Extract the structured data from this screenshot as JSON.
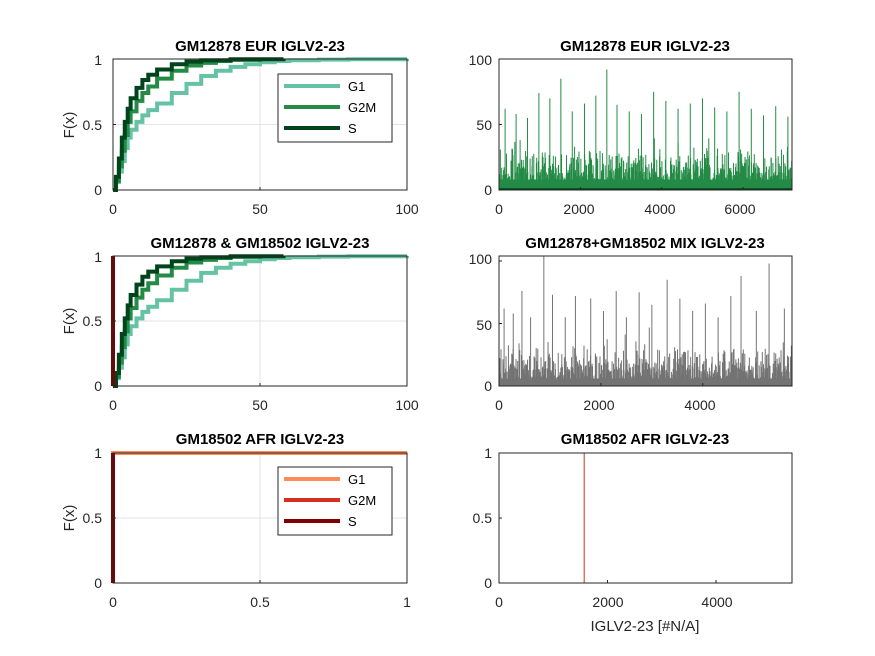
{
  "chart_data": [
    {
      "type": "line",
      "title": "GM12878 EUR IGLV2-23",
      "xlabel": "",
      "ylabel": "F(x)",
      "xlim": [
        0,
        100
      ],
      "ylim": [
        0,
        1
      ],
      "xticks": [
        "0",
        "50",
        "100"
      ],
      "yticks": [
        "0",
        "0.5",
        "1"
      ],
      "grid": true,
      "legend": "inside-top-right",
      "series": [
        {
          "name": "G1",
          "color": "#66c2a4",
          "x": [
            0,
            1,
            2,
            3,
            4,
            5,
            6,
            8,
            10,
            12,
            15,
            20,
            25,
            30,
            35,
            40,
            45,
            50,
            55,
            60,
            70,
            80,
            100
          ],
          "y": [
            0,
            0.06,
            0.14,
            0.22,
            0.32,
            0.4,
            0.46,
            0.52,
            0.57,
            0.61,
            0.66,
            0.74,
            0.81,
            0.87,
            0.91,
            0.94,
            0.96,
            0.975,
            0.985,
            0.99,
            0.995,
            0.998,
            1
          ]
        },
        {
          "name": "G2M",
          "color": "#238b45",
          "x": [
            0,
            1,
            2,
            3,
            4,
            5,
            6,
            8,
            10,
            12,
            15,
            20,
            25,
            30,
            35,
            40,
            50
          ],
          "y": [
            0,
            0.07,
            0.18,
            0.3,
            0.42,
            0.52,
            0.6,
            0.68,
            0.74,
            0.79,
            0.85,
            0.91,
            0.95,
            0.97,
            0.985,
            0.993,
            1
          ]
        },
        {
          "name": "S",
          "color": "#00441b",
          "x": [
            0,
            1,
            2,
            3,
            4,
            5,
            6,
            8,
            10,
            12,
            15,
            20,
            25,
            30,
            40,
            58
          ],
          "y": [
            0,
            0.1,
            0.24,
            0.4,
            0.52,
            0.62,
            0.7,
            0.78,
            0.84,
            0.88,
            0.92,
            0.96,
            0.98,
            0.99,
            0.998,
            1
          ]
        }
      ]
    },
    {
      "type": "bar",
      "title": "GM12878 EUR IGLV2-23",
      "xlabel": "",
      "ylabel": "",
      "xlim": [
        0,
        7200
      ],
      "ylim": [
        0,
        100
      ],
      "xticks": [
        "0",
        "2000",
        "4000",
        "6000"
      ],
      "yticks": [
        "0",
        "50",
        "100"
      ],
      "grid": false,
      "color": "#238b45",
      "spikes_x": [
        150,
        420,
        700,
        980,
        1250,
        1520,
        1800,
        2100,
        2380,
        2650,
        2900,
        3200,
        3500,
        3800,
        4100,
        4400,
        4700,
        5000,
        5300,
        5600,
        5900,
        6200,
        6500,
        6800,
        7100
      ],
      "spikes_y": [
        62,
        58,
        55,
        74,
        70,
        85,
        60,
        66,
        72,
        92,
        65,
        60,
        58,
        75,
        68,
        62,
        66,
        70,
        63,
        60,
        75,
        62,
        57,
        64,
        56
      ]
    },
    {
      "type": "line",
      "title": "GM12878 & GM18502 IGLV2-23",
      "xlabel": "",
      "ylabel": "F(x)",
      "xlim": [
        0,
        100
      ],
      "ylim": [
        0,
        1
      ],
      "xticks": [
        "0",
        "50",
        "100"
      ],
      "yticks": [
        "0",
        "0.5",
        "1"
      ],
      "grid": true,
      "series": [
        {
          "color": "#66c2a4",
          "x": [
            0,
            1,
            2,
            3,
            4,
            5,
            6,
            8,
            10,
            12,
            15,
            20,
            25,
            30,
            35,
            40,
            45,
            50,
            55,
            60,
            70,
            80,
            100
          ],
          "y": [
            0,
            0.06,
            0.14,
            0.22,
            0.32,
            0.4,
            0.46,
            0.52,
            0.57,
            0.61,
            0.66,
            0.74,
            0.81,
            0.87,
            0.91,
            0.94,
            0.96,
            0.975,
            0.985,
            0.99,
            0.995,
            0.998,
            1
          ]
        },
        {
          "color": "#238b45",
          "x": [
            0,
            1,
            2,
            3,
            4,
            5,
            6,
            8,
            10,
            12,
            15,
            20,
            25,
            30,
            35,
            40,
            50
          ],
          "y": [
            0,
            0.07,
            0.18,
            0.3,
            0.42,
            0.52,
            0.6,
            0.68,
            0.74,
            0.79,
            0.85,
            0.91,
            0.95,
            0.97,
            0.985,
            0.993,
            1
          ]
        },
        {
          "color": "#00441b",
          "x": [
            0,
            1,
            2,
            3,
            4,
            5,
            6,
            8,
            10,
            12,
            15,
            20,
            25,
            30,
            40,
            58
          ],
          "y": [
            0,
            0.1,
            0.24,
            0.4,
            0.52,
            0.62,
            0.7,
            0.78,
            0.84,
            0.88,
            0.92,
            0.96,
            0.98,
            0.99,
            0.998,
            1
          ]
        },
        {
          "color": "#fc8d59",
          "x": [
            0,
            0
          ],
          "y": [
            0,
            1
          ]
        },
        {
          "color": "#d7301f",
          "x": [
            0,
            0
          ],
          "y": [
            0,
            1
          ]
        },
        {
          "color": "#7f0000",
          "x": [
            0,
            0
          ],
          "y": [
            0,
            1
          ]
        }
      ]
    },
    {
      "type": "bar",
      "title": "GM12878+GM18502 MIX IGLV2-23",
      "xlabel": "",
      "ylabel": "",
      "xlim": [
        0,
        5750
      ],
      "ylim": [
        0,
        104
      ],
      "xticks": [
        "0",
        "2000",
        "4000"
      ],
      "yticks": [
        "0",
        "50",
        "100"
      ],
      "grid": false,
      "color": "#737373",
      "spikes_x": [
        100,
        280,
        450,
        620,
        880,
        1050,
        1300,
        1500,
        1800,
        2050,
        2300,
        2500,
        2750,
        3000,
        3300,
        3550,
        3800,
        4050,
        4300,
        4550,
        4750,
        5050,
        5300,
        5600
      ],
      "spikes_y": [
        62,
        58,
        76,
        55,
        104,
        73,
        55,
        72,
        70,
        60,
        76,
        55,
        75,
        65,
        85,
        70,
        60,
        66,
        55,
        72,
        88,
        60,
        98,
        62
      ]
    },
    {
      "type": "line",
      "title": "GM18502 AFR IGLV2-23",
      "xlabel": "",
      "ylabel": "F(x)",
      "xlim": [
        0,
        1
      ],
      "ylim": [
        0,
        1
      ],
      "xticks": [
        "0",
        "0.5",
        "1"
      ],
      "yticks": [
        "0",
        "0.5",
        "1"
      ],
      "grid": true,
      "legend": "inside-top-right",
      "series": [
        {
          "name": "G1",
          "color": "#fc8d59",
          "x": [
            0,
            0,
            1
          ],
          "y": [
            0,
            1,
            1
          ]
        },
        {
          "name": "G2M",
          "color": "#d7301f",
          "x": [
            0,
            0
          ],
          "y": [
            0,
            1
          ]
        },
        {
          "name": "S",
          "color": "#7f0000",
          "x": [
            0,
            0
          ],
          "y": [
            0,
            1
          ]
        }
      ]
    },
    {
      "type": "bar",
      "title": "GM18502 AFR IGLV2-23",
      "xlabel": "IGLV2-23 [#N/A]",
      "ylabel": "",
      "xlim": [
        0,
        5400
      ],
      "ylim": [
        0,
        1
      ],
      "xticks": [
        "0",
        "2000",
        "4000"
      ],
      "yticks": [
        "0",
        "0.5",
        "1"
      ],
      "grid": false,
      "color": "#d7301f",
      "spikes_x": [
        1570
      ],
      "spikes_y": [
        1
      ]
    }
  ]
}
